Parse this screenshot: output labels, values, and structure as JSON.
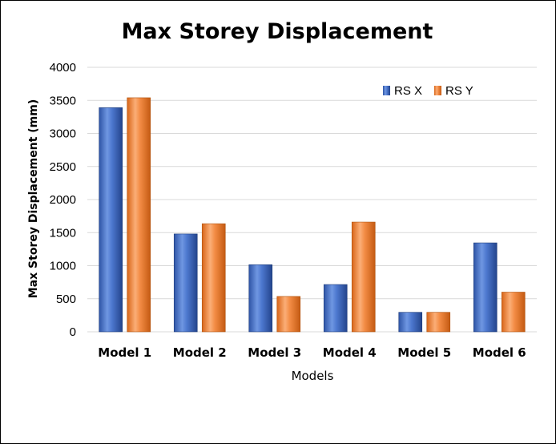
{
  "chart_data": {
    "type": "bar",
    "title": "Max Storey Displacement",
    "xlabel": "Models",
    "ylabel": "Max Storey Displacement (mm)",
    "categories": [
      "Model 1",
      "Model 2",
      "Model 3",
      "Model 4",
      "Model 5",
      "Model 6"
    ],
    "series": [
      {
        "name": "RS X",
        "values": [
          3390,
          1480,
          1015,
          715,
          295,
          1345
        ],
        "color": "#4472c4"
      },
      {
        "name": "RS Y",
        "values": [
          3540,
          1635,
          535,
          1660,
          295,
          600
        ],
        "color": "#ed7d31"
      }
    ],
    "ylim": [
      0,
      4000
    ],
    "yticks": [
      "0",
      "500",
      "1000",
      "1500",
      "2000",
      "2500",
      "3000",
      "3500",
      "4000"
    ],
    "grid": true,
    "legend_position": "top-right"
  }
}
